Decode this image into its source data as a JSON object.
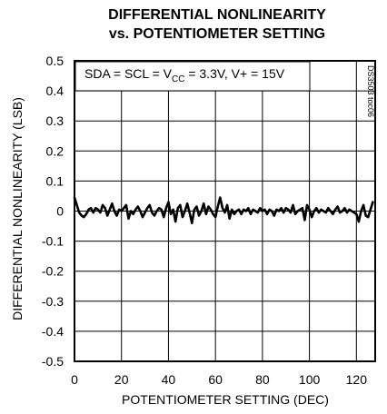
{
  "chart_data": {
    "type": "line",
    "title_lines": [
      "DIFFERENTIAL NONLINEARITY",
      "vs. POTENTIOMETER SETTING"
    ],
    "xlabel": "POTENTIOMETER SETTING (DEC)",
    "ylabel": "DIFFERENTIAL NONLINEARITY (LSB)",
    "xlim": [
      0,
      128
    ],
    "ylim": [
      -0.5,
      0.5
    ],
    "x_ticks": [
      0,
      20,
      40,
      60,
      80,
      100,
      120
    ],
    "x_tick_labels": [
      "0",
      "20",
      "40",
      "60",
      "80",
      "100",
      "120"
    ],
    "y_ticks": [
      0.5,
      0.4,
      0.3,
      0.2,
      0.1,
      0,
      -0.1,
      -0.2,
      -0.3,
      -0.4,
      -0.5
    ],
    "y_tick_labels": [
      "0.5",
      "0.4",
      "0.3",
      "0.2",
      "0.1",
      "0",
      "-0.1",
      "-0.2",
      "-0.3",
      "-0.4",
      "-0.5"
    ],
    "grid": true,
    "annotation": {
      "pre": "SDA = SCL = V",
      "sub": "CC",
      "post": " = 3.3V, V+ = 15V"
    },
    "figure_code": "DS3503 toc06",
    "series": [
      {
        "x": [
          0,
          1,
          2,
          3,
          4,
          5,
          6,
          7,
          8,
          9,
          10,
          11,
          12,
          13,
          14,
          15,
          16,
          17,
          18,
          19,
          20,
          21,
          22,
          23,
          24,
          25,
          26,
          27,
          28,
          29,
          30,
          31,
          32,
          33,
          34,
          35,
          36,
          37,
          38,
          39,
          40,
          41,
          42,
          43,
          44,
          45,
          46,
          47,
          48,
          49,
          50,
          51,
          52,
          53,
          54,
          55,
          56,
          57,
          58,
          59,
          60,
          61,
          62,
          63,
          64,
          65,
          66,
          67,
          68,
          69,
          70,
          71,
          72,
          73,
          74,
          75,
          76,
          77,
          78,
          79,
          80,
          81,
          82,
          83,
          84,
          85,
          86,
          87,
          88,
          89,
          90,
          91,
          92,
          93,
          94,
          95,
          96,
          97,
          98,
          99,
          100,
          101,
          102,
          103,
          104,
          105,
          106,
          107,
          108,
          109,
          110,
          111,
          112,
          113,
          114,
          115,
          116,
          117,
          118,
          119,
          120,
          121,
          122,
          123,
          124,
          125,
          126,
          127
        ],
        "values": [
          0.045,
          0.02,
          -0.005,
          -0.015,
          -0.02,
          -0.01,
          0.005,
          0.01,
          -0.005,
          0.01,
          0.005,
          -0.005,
          0.02,
          0.01,
          -0.015,
          0.005,
          0.025,
          0.0,
          -0.015,
          0.005,
          0.0,
          0.01,
          0.02,
          -0.025,
          0.0,
          -0.01,
          0.005,
          0.015,
          0.0,
          -0.02,
          -0.005,
          0.01,
          0.02,
          -0.005,
          -0.015,
          0.0,
          0.01,
          0.005,
          -0.02,
          0.01,
          0.03,
          -0.01,
          0.005,
          -0.035,
          0.01,
          0.02,
          -0.02,
          0.0,
          0.025,
          -0.005,
          -0.04,
          0.005,
          0.015,
          -0.015,
          0.0,
          0.025,
          -0.01,
          0.015,
          0.005,
          -0.01,
          -0.02,
          0.015,
          0.045,
          0.01,
          -0.005,
          0.02,
          -0.025,
          0.005,
          -0.01,
          0.0,
          0.005,
          -0.01,
          0.005,
          0.0,
          0.01,
          -0.01,
          0.005,
          0.0,
          -0.005,
          0.01,
          0.0,
          0.005,
          -0.01,
          0.005,
          0.0,
          -0.015,
          0.005,
          0.0,
          0.01,
          -0.005,
          0.01,
          0.005,
          -0.005,
          0.02,
          -0.01,
          0.0,
          0.005,
          0.01,
          -0.03,
          0.02,
          0.005,
          -0.02,
          0.0,
          0.01,
          -0.005,
          0.005,
          0.0,
          -0.005,
          0.01,
          0.0,
          -0.01,
          0.005,
          0.015,
          -0.005,
          0.0,
          0.01,
          -0.005,
          0.005,
          0.0,
          -0.005,
          -0.01,
          -0.035,
          0.0,
          0.02,
          -0.015,
          -0.02,
          0.005,
          0.03
        ]
      }
    ]
  }
}
